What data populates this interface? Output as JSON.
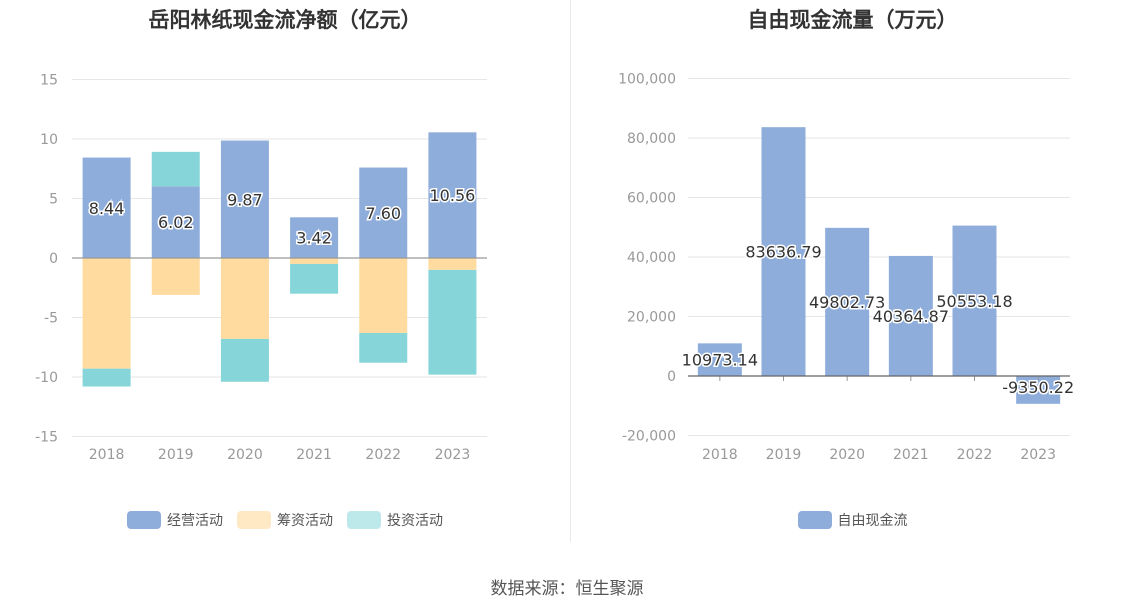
{
  "left_chart": {
    "title": "岳阳林纸现金流净额（亿元）",
    "legend": [
      "经营活动",
      "筹资活动",
      "投资活动"
    ]
  },
  "right_chart": {
    "title": "自由现金流量（万元）",
    "legend": [
      "自由现金流"
    ]
  },
  "source": "数据来源：恒生聚源",
  "colors": {
    "operating": "#8eadda",
    "financing": "#ffdb9f",
    "investing": "#86d5d8"
  },
  "chart_data": [
    {
      "type": "bar",
      "stacked": true,
      "title": "岳阳林纸现金流净额（亿元）",
      "categories": [
        "2018",
        "2019",
        "2020",
        "2021",
        "2022",
        "2023"
      ],
      "ylim": [
        -15,
        15
      ],
      "yticks": [
        15,
        10,
        5,
        0,
        -5,
        -10,
        -15
      ],
      "grid": true,
      "legend_position": "bottom",
      "series": [
        {
          "name": "经营活动",
          "values": [
            8.44,
            6.02,
            9.87,
            3.42,
            7.6,
            10.56
          ],
          "labels": [
            "8.44",
            "6.02",
            "9.87",
            "3.42",
            "7.60",
            "10.56"
          ]
        },
        {
          "name": "筹资活动",
          "values": [
            -9.3,
            -3.1,
            -6.8,
            -0.5,
            -6.3,
            -1.0
          ]
        },
        {
          "name": "投资活动",
          "values": [
            -1.5,
            2.9,
            -3.6,
            -2.5,
            -2.5,
            -8.8
          ]
        }
      ]
    },
    {
      "type": "bar",
      "title": "自由现金流量（万元）",
      "categories": [
        "2018",
        "2019",
        "2020",
        "2021",
        "2022",
        "2023"
      ],
      "ylim": [
        -20000,
        100000
      ],
      "yticks": [
        "100,000",
        "80,000",
        "60,000",
        "40,000",
        "20,000",
        "0",
        "-20,000"
      ],
      "grid": true,
      "legend_position": "bottom",
      "series": [
        {
          "name": "自由现金流",
          "values": [
            10973.14,
            83636.79,
            49802.73,
            40364.87,
            50553.18,
            -9350.22
          ],
          "labels": [
            "10973.14",
            "83636.79",
            "49802.73",
            "40364.87",
            "50553.18",
            "-9350.22"
          ]
        }
      ]
    }
  ]
}
